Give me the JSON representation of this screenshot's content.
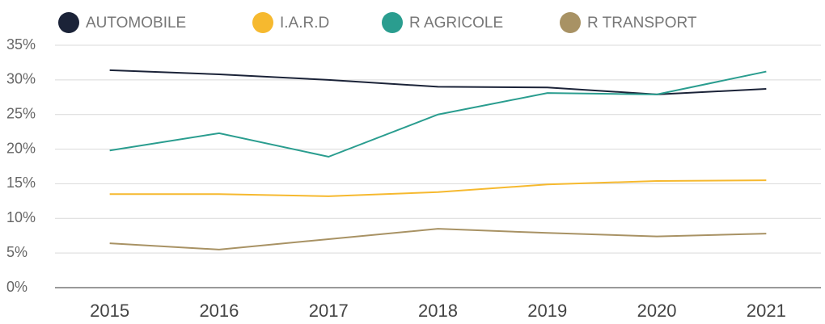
{
  "chart_data": {
    "type": "line",
    "categories": [
      "2015",
      "2016",
      "2017",
      "2018",
      "2019",
      "2020",
      "2021"
    ],
    "series": [
      {
        "name": "AUTOMOBILE",
        "color": "#1b2338",
        "values": [
          31.4,
          30.8,
          30.0,
          29.0,
          28.9,
          27.9,
          28.7
        ]
      },
      {
        "name": "I.A.R.D",
        "color": "#f6b92f",
        "values": [
          13.5,
          13.5,
          13.2,
          13.8,
          14.9,
          15.4,
          15.5
        ]
      },
      {
        "name": "R AGRICOLE",
        "color": "#2a9d8f",
        "values": [
          19.8,
          22.3,
          18.9,
          25.0,
          28.1,
          27.9,
          31.2
        ]
      },
      {
        "name": "R TRANSPORT",
        "color": "#a89264",
        "values": [
          6.4,
          5.5,
          7.0,
          8.5,
          7.9,
          7.4,
          7.8
        ]
      }
    ],
    "ylim": [
      0,
      35
    ],
    "yticks": [
      {
        "value": 0,
        "label": "0%"
      },
      {
        "value": 5,
        "label": "5%"
      },
      {
        "value": 10,
        "label": "10%"
      },
      {
        "value": 15,
        "label": "15%"
      },
      {
        "value": 20,
        "label": "20%"
      },
      {
        "value": 25,
        "label": "25%"
      },
      {
        "value": 30,
        "label": "30%"
      },
      {
        "value": 35,
        "label": "35%"
      }
    ],
    "grid": true
  }
}
